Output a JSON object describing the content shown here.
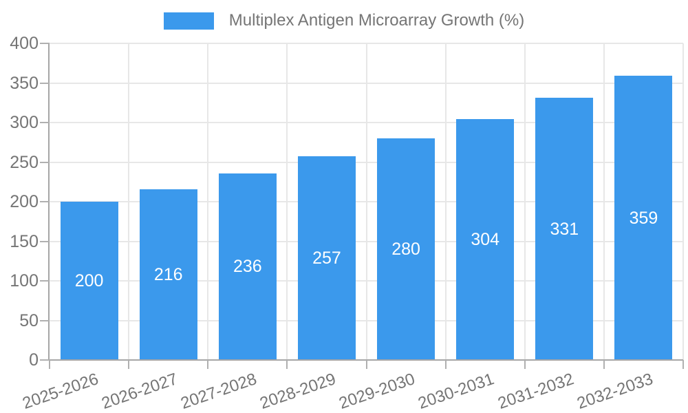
{
  "chart_data": {
    "type": "bar",
    "title": "Multiplex Antigen Microarray Growth (%)",
    "categories": [
      "2025-2026",
      "2026-2027",
      "2027-2028",
      "2028-2029",
      "2029-2030",
      "2030-2031",
      "2031-2032",
      "2032-2033"
    ],
    "values": [
      200,
      216,
      236,
      257,
      280,
      304,
      331,
      359
    ],
    "xlabel": "",
    "ylabel": "",
    "ylim": [
      0,
      400
    ],
    "ytick_step": 50,
    "ytick_labels": [
      "0",
      "50",
      "100",
      "150",
      "200",
      "250",
      "300",
      "350",
      "400"
    ],
    "value_labels": [
      "200",
      "216",
      "236",
      "257",
      "280",
      "304",
      "331",
      "359"
    ],
    "legend_position": "top",
    "grid": true,
    "colors": {
      "bar": "#3B99EC",
      "text": "#757575",
      "value_label": "#FFFFFF",
      "grid": "#E7E7E7",
      "axis": "#A6A6A6",
      "tick": "#B0B0B0",
      "background": "#FFFFFF"
    }
  }
}
